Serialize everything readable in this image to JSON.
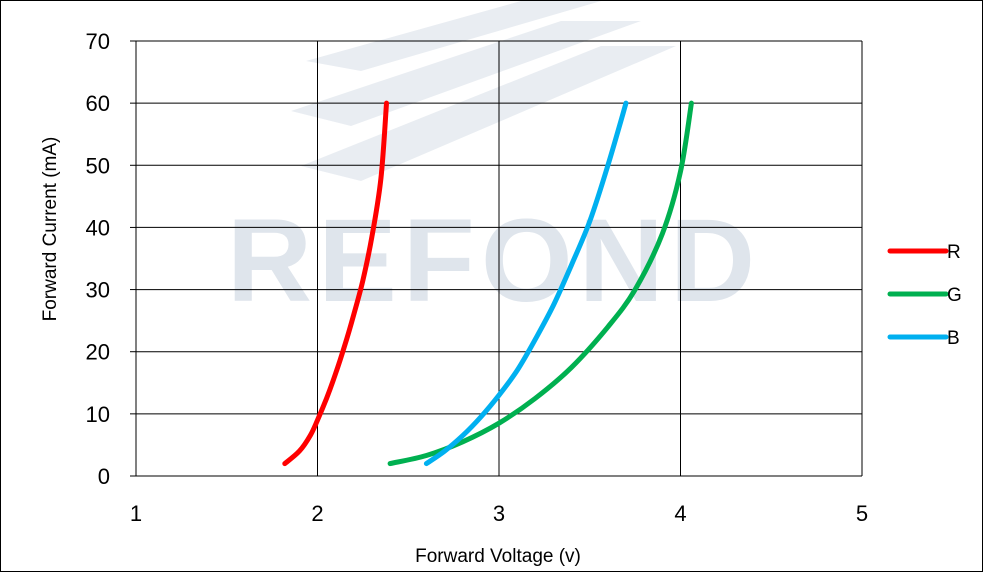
{
  "watermark": {
    "text": "REFOND",
    "color": "#dfe5ec"
  },
  "chart_data": {
    "type": "line",
    "title": "",
    "xlabel": "Forward Voltage (v)",
    "ylabel": "Forward Current (mA)",
    "xlim": [
      1,
      5
    ],
    "ylim": [
      0,
      70
    ],
    "xticks": [
      1,
      2,
      3,
      4,
      5
    ],
    "yticks": [
      0,
      10,
      20,
      30,
      40,
      50,
      60,
      70
    ],
    "grid": true,
    "legend_position": "right",
    "series": [
      {
        "name": "R",
        "color": "#ff0000",
        "x": [
          1.82,
          1.9,
          1.96,
          2.0,
          2.05,
          2.1,
          2.15,
          2.2,
          2.25,
          2.3,
          2.35,
          2.38
        ],
        "y": [
          2,
          4,
          6.5,
          9,
          12.5,
          16.5,
          21,
          26,
          31.5,
          38.5,
          48,
          60
        ]
      },
      {
        "name": "G",
        "color": "#00b050",
        "x": [
          2.4,
          2.6,
          2.8,
          3.0,
          3.2,
          3.4,
          3.6,
          3.75,
          3.9,
          4.0,
          4.06
        ],
        "y": [
          2,
          3.3,
          5.5,
          8.5,
          12.5,
          17.5,
          24,
          30,
          39,
          49,
          60
        ]
      },
      {
        "name": "B",
        "color": "#00b0f0",
        "x": [
          2.6,
          2.7,
          2.8,
          2.9,
          3.0,
          3.1,
          3.2,
          3.3,
          3.4,
          3.5,
          3.6,
          3.7
        ],
        "y": [
          2,
          4,
          6.5,
          9.5,
          13,
          17,
          22,
          27.5,
          34,
          41,
          50,
          60
        ]
      }
    ]
  }
}
